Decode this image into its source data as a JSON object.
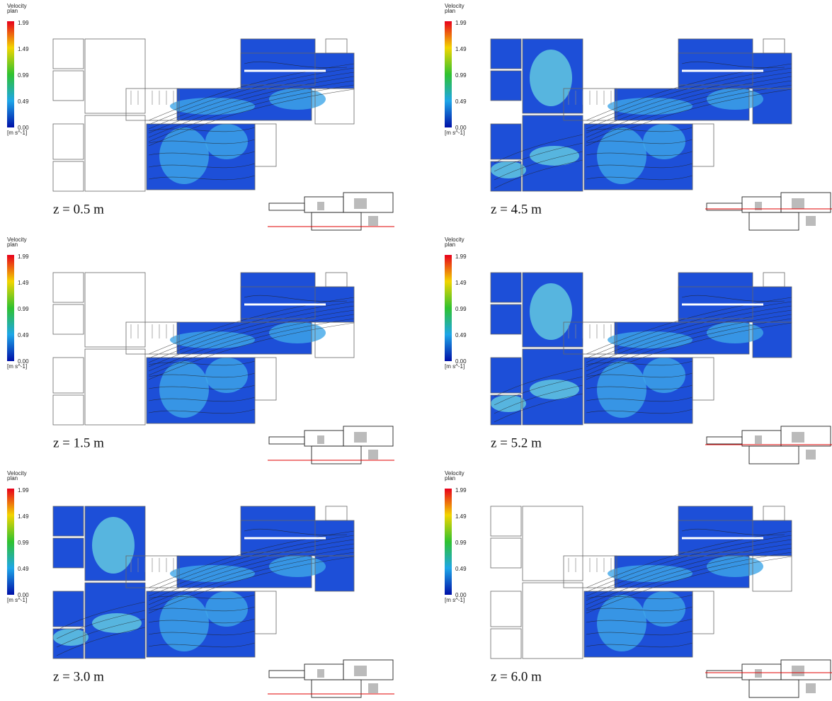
{
  "panels": [
    {
      "legend": {
        "title": "Velocity",
        "subtitle": "plan",
        "ticks": [
          "1.99",
          "1.49",
          "0.99",
          "0.49",
          "0.00"
        ],
        "unit": "[m s^-1]"
      },
      "caption": "z = 0.5 m"
    },
    {
      "legend": {
        "title": "Velocity",
        "subtitle": "plan",
        "ticks": [
          "1.99",
          "1.49",
          "0.99",
          "0.49",
          "0.00"
        ],
        "unit": "[m s^-1]"
      },
      "caption": "z = 4.5 m"
    },
    {
      "legend": {
        "title": "Velocity",
        "subtitle": "plan",
        "ticks": [
          "1.99",
          "1.49",
          "0.99",
          "0.49",
          "0.00"
        ],
        "unit": "[m s^-1]"
      },
      "caption": "z = 1.5 m"
    },
    {
      "legend": {
        "title": "Velocity",
        "subtitle": "plan",
        "ticks": [
          "1.99",
          "1.49",
          "0.99",
          "0.49",
          "0.00"
        ],
        "unit": "[m s^-1]"
      },
      "caption": "z = 5.2 m"
    },
    {
      "legend": {
        "title": "Velocity",
        "subtitle": "plan",
        "ticks": [
          "1.99",
          "1.49",
          "0.99",
          "0.49",
          "0.00"
        ],
        "unit": "[m s^-1]"
      },
      "caption": "z = 3.0 m"
    },
    {
      "legend": {
        "title": "Velocity",
        "subtitle": "plan",
        "ticks": [
          "1.99",
          "1.49",
          "0.99",
          "0.49",
          "0.00"
        ],
        "unit": "[m s^-1]"
      },
      "caption": "z = 6.0 m"
    }
  ]
}
